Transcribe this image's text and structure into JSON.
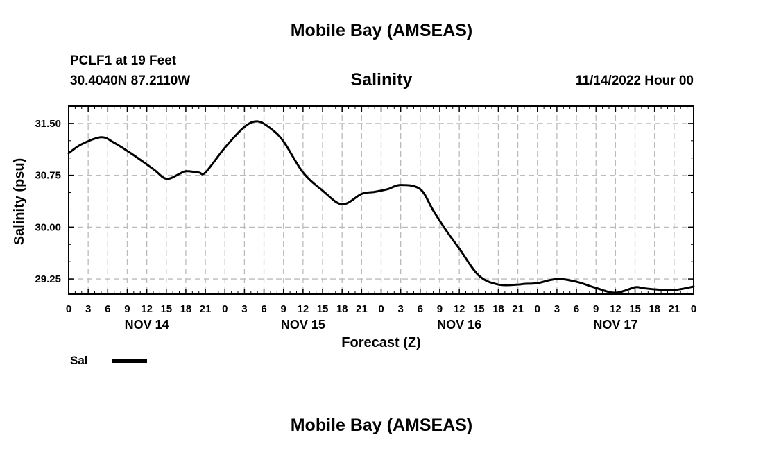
{
  "header": {
    "top_title": "Mobile Bay (AMSEAS)",
    "station": "PCLF1 at 19 Feet",
    "coords": "30.4040N  87.2110W",
    "subtitle": "Salinity",
    "runtime": "11/14/2022 Hour 00",
    "bottom_title": "Mobile Bay (AMSEAS)"
  },
  "chart_data": {
    "type": "line",
    "title": "Salinity",
    "xlabel": "Forecast (Z)",
    "ylabel": "Salinity (psu)",
    "xlim": [
      0,
      96
    ],
    "ylim": [
      29.03,
      31.75
    ],
    "yticks": [
      29.25,
      30.0,
      30.75,
      31.5
    ],
    "ytick_labels": [
      "29.25",
      "30.00",
      "30.75",
      "31.50"
    ],
    "xticks": [
      0,
      3,
      6,
      9,
      12,
      15,
      18,
      21,
      24,
      27,
      30,
      33,
      36,
      39,
      42,
      45,
      48,
      51,
      54,
      57,
      60,
      63,
      66,
      69,
      72,
      75,
      78,
      81,
      84,
      87,
      90,
      93,
      96
    ],
    "xtick_labels": [
      "0",
      "3",
      "6",
      "9",
      "12",
      "15",
      "18",
      "21",
      "0",
      "3",
      "6",
      "9",
      "12",
      "15",
      "18",
      "21",
      "0",
      "3",
      "6",
      "9",
      "12",
      "15",
      "18",
      "21",
      "0",
      "3",
      "6",
      "9",
      "12",
      "15",
      "18",
      "21",
      "0"
    ],
    "day_labels": [
      {
        "hour": 12,
        "label": "NOV 14"
      },
      {
        "hour": 36,
        "label": "NOV 15"
      },
      {
        "hour": 60,
        "label": "NOV 16"
      },
      {
        "hour": 84,
        "label": "NOV 17"
      }
    ],
    "grid": true,
    "legend": {
      "placement": "bottom-left",
      "entries": [
        "Sal"
      ]
    },
    "series": [
      {
        "name": "Sal",
        "color": "#000000",
        "x": [
          0,
          2,
          5,
          7,
          10,
          13,
          15,
          17,
          18,
          20,
          21,
          24,
          27,
          29,
          31,
          33,
          36,
          39,
          42,
          45,
          47,
          49,
          51,
          54,
          56,
          58,
          60,
          63,
          66,
          69,
          70,
          72,
          75,
          78,
          81,
          84,
          87,
          88,
          90,
          93,
          96
        ],
        "y": [
          31.07,
          31.2,
          31.3,
          31.22,
          31.04,
          30.84,
          30.7,
          30.77,
          30.81,
          30.79,
          30.79,
          31.15,
          31.45,
          31.53,
          31.43,
          31.24,
          30.79,
          30.53,
          30.33,
          30.48,
          30.51,
          30.55,
          30.61,
          30.55,
          30.24,
          29.95,
          29.69,
          29.3,
          29.17,
          29.17,
          29.18,
          29.19,
          29.25,
          29.21,
          29.12,
          29.05,
          29.13,
          29.12,
          29.1,
          29.09,
          29.14
        ]
      }
    ]
  }
}
